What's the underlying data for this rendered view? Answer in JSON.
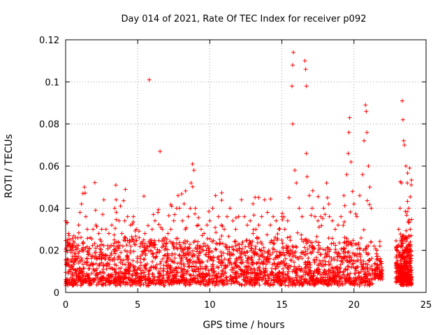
{
  "chart_data": {
    "type": "scatter",
    "title": "Day 014 of 2021, Rate Of TEC Index for receiver p092",
    "xlabel": "GPS time / hours",
    "ylabel": "ROTI / TECUs",
    "xlim": [
      0,
      25
    ],
    "ylim": [
      0,
      0.12
    ],
    "x_ticks": [
      0,
      5,
      10,
      15,
      20,
      25
    ],
    "x_tick_labels": [
      "0",
      "5",
      "10",
      "15",
      "20",
      "25"
    ],
    "y_ticks": [
      0,
      0.02,
      0.04,
      0.06,
      0.08,
      0.1,
      0.12
    ],
    "y_tick_labels": [
      "0",
      "0.02",
      "0.04",
      "0.06",
      "0.08",
      "0.1",
      "0.12"
    ],
    "grid": true,
    "legend": "none",
    "marker": "plus",
    "color": "#ff0000",
    "series": [
      {
        "points": [
          [
            0.0,
            0.034
          ],
          [
            0.1,
            0.024
          ],
          [
            0.2,
            0.028
          ],
          [
            0.3,
            0.022
          ],
          [
            0.5,
            0.02
          ],
          [
            0.7,
            0.026
          ],
          [
            0.9,
            0.032
          ],
          [
            1.0,
            0.038
          ],
          [
            1.1,
            0.042
          ],
          [
            1.2,
            0.047
          ],
          [
            1.3,
            0.05
          ],
          [
            1.4,
            0.036
          ],
          [
            1.5,
            0.03
          ],
          [
            1.7,
            0.026
          ],
          [
            1.9,
            0.03
          ],
          [
            2.1,
            0.032
          ],
          [
            2.3,
            0.028
          ],
          [
            2.5,
            0.03
          ],
          [
            2.65,
            0.044
          ],
          [
            2.8,
            0.03
          ],
          [
            3.0,
            0.028
          ],
          [
            3.2,
            0.032
          ],
          [
            3.4,
            0.04
          ],
          [
            3.5,
            0.044
          ],
          [
            3.7,
            0.034
          ],
          [
            3.9,
            0.028
          ],
          [
            4.1,
            0.034
          ],
          [
            4.3,
            0.036
          ],
          [
            4.5,
            0.032
          ],
          [
            4.7,
            0.036
          ],
          [
            4.9,
            0.03
          ],
          [
            5.1,
            0.026
          ],
          [
            5.3,
            0.024
          ],
          [
            5.5,
            0.028
          ],
          [
            5.8,
            0.101
          ],
          [
            6.0,
            0.03
          ],
          [
            6.2,
            0.034
          ],
          [
            6.4,
            0.038
          ],
          [
            6.55,
            0.067
          ],
          [
            6.7,
            0.03
          ],
          [
            6.9,
            0.026
          ],
          [
            7.1,
            0.028
          ],
          [
            7.3,
            0.03
          ],
          [
            7.5,
            0.034
          ],
          [
            7.7,
            0.04
          ],
          [
            7.8,
            0.046
          ],
          [
            7.9,
            0.04
          ],
          [
            8.1,
            0.034
          ],
          [
            8.3,
            0.03
          ],
          [
            8.5,
            0.036
          ],
          [
            8.7,
            0.052
          ],
          [
            8.8,
            0.061
          ],
          [
            8.9,
            0.058
          ],
          [
            9.0,
            0.04
          ],
          [
            9.2,
            0.032
          ],
          [
            9.4,
            0.03
          ],
          [
            9.6,
            0.028
          ],
          [
            9.8,
            0.032
          ],
          [
            10.0,
            0.034
          ],
          [
            10.2,
            0.04
          ],
          [
            10.4,
            0.046
          ],
          [
            10.6,
            0.036
          ],
          [
            10.8,
            0.032
          ],
          [
            11.0,
            0.03
          ],
          [
            11.2,
            0.036
          ],
          [
            11.4,
            0.04
          ],
          [
            11.6,
            0.034
          ],
          [
            11.8,
            0.03
          ],
          [
            12.0,
            0.036
          ],
          [
            12.2,
            0.044
          ],
          [
            12.4,
            0.036
          ],
          [
            12.6,
            0.032
          ],
          [
            12.8,
            0.034
          ],
          [
            13.0,
            0.028
          ],
          [
            13.2,
            0.03
          ],
          [
            13.4,
            0.032
          ],
          [
            13.6,
            0.036
          ],
          [
            13.8,
            0.044
          ],
          [
            14.0,
            0.038
          ],
          [
            14.2,
            0.032
          ],
          [
            14.4,
            0.036
          ],
          [
            14.6,
            0.034
          ],
          [
            14.8,
            0.03
          ],
          [
            15.0,
            0.036
          ],
          [
            15.2,
            0.03
          ],
          [
            15.4,
            0.034
          ],
          [
            15.5,
            0.045
          ],
          [
            15.7,
            0.098
          ],
          [
            15.75,
            0.108
          ],
          [
            15.8,
            0.114
          ],
          [
            15.75,
            0.08
          ],
          [
            15.9,
            0.058
          ],
          [
            16.0,
            0.052
          ],
          [
            16.2,
            0.04
          ],
          [
            16.4,
            0.036
          ],
          [
            16.6,
            0.11
          ],
          [
            16.65,
            0.106
          ],
          [
            16.7,
            0.098
          ],
          [
            16.7,
            0.066
          ],
          [
            16.75,
            0.055
          ],
          [
            16.9,
            0.046
          ],
          [
            17.1,
            0.04
          ],
          [
            17.3,
            0.036
          ],
          [
            17.5,
            0.034
          ],
          [
            17.7,
            0.036
          ],
          [
            17.9,
            0.04
          ],
          [
            18.1,
            0.052
          ],
          [
            18.3,
            0.036
          ],
          [
            18.5,
            0.034
          ],
          [
            18.7,
            0.03
          ],
          [
            18.9,
            0.032
          ],
          [
            19.1,
            0.036
          ],
          [
            19.3,
            0.046
          ],
          [
            19.5,
            0.056
          ],
          [
            19.6,
            0.066
          ],
          [
            19.65,
            0.076
          ],
          [
            19.7,
            0.083
          ],
          [
            19.8,
            0.062
          ],
          [
            19.9,
            0.048
          ],
          [
            20.0,
            0.042
          ],
          [
            20.2,
            0.036
          ],
          [
            20.4,
            0.046
          ],
          [
            20.6,
            0.056
          ],
          [
            20.7,
            0.072
          ],
          [
            20.8,
            0.089
          ],
          [
            20.85,
            0.086
          ],
          [
            20.9,
            0.076
          ],
          [
            21.0,
            0.06
          ],
          [
            21.1,
            0.05
          ],
          [
            21.2,
            0.04
          ],
          [
            21.4,
            0.022
          ],
          [
            21.6,
            0.02
          ],
          [
            21.8,
            0.022
          ],
          [
            23.1,
            0.03
          ],
          [
            23.2,
            0.04
          ],
          [
            23.3,
            0.052
          ],
          [
            23.35,
            0.091
          ],
          [
            23.4,
            0.082
          ],
          [
            23.45,
            0.072
          ],
          [
            23.5,
            0.07
          ],
          [
            23.6,
            0.06
          ],
          [
            23.7,
            0.052
          ],
          [
            23.8,
            0.04
          ],
          [
            23.9,
            0.03
          ]
        ]
      }
    ],
    "dense_bands": [
      {
        "x_start": 0.0,
        "x_end": 21.3,
        "y_min": 0.003,
        "y_max": 0.022,
        "count": 2400,
        "tail": 0.03
      },
      {
        "x_start": 21.4,
        "x_end": 22.0,
        "y_min": 0.006,
        "y_max": 0.015,
        "count": 70,
        "tail": 0.01
      },
      {
        "x_start": 22.9,
        "x_end": 23.2,
        "y_min": 0.004,
        "y_max": 0.02,
        "count": 70,
        "tail": 0.02
      },
      {
        "x_start": 23.2,
        "x_end": 24.0,
        "y_min": 0.003,
        "y_max": 0.024,
        "count": 320,
        "tail": 0.035
      }
    ]
  }
}
